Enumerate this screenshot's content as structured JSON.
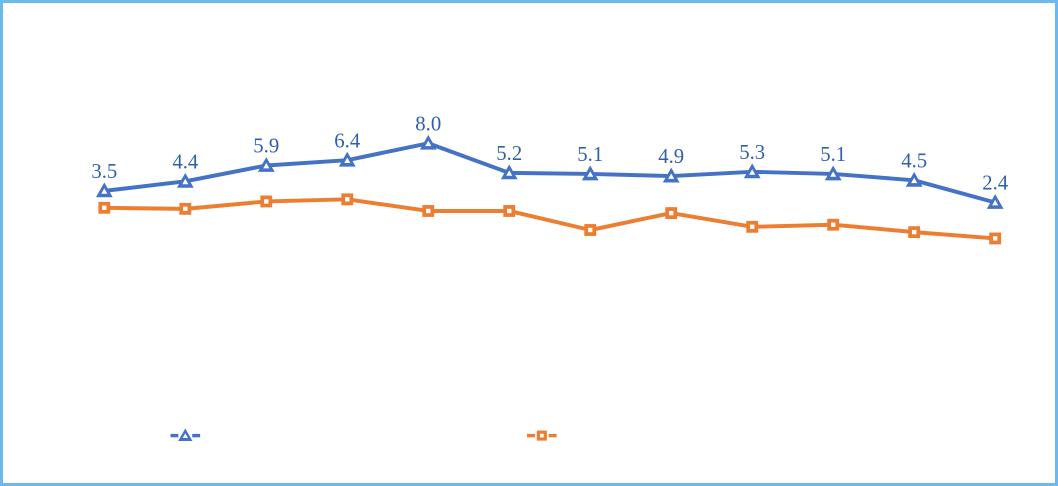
{
  "frame": {
    "border_color": "#6CB8F0",
    "background_color": "#FFFFFF"
  },
  "chart_data": {
    "type": "line",
    "title": "",
    "x": [
      1,
      2,
      3,
      4,
      5,
      6,
      7,
      8,
      9,
      10,
      11,
      12
    ],
    "xlabel": "",
    "ylabel": "",
    "grid": false,
    "axes_visible": false,
    "legend_position": "bottom",
    "data_label_color": "#3060AC",
    "series": [
      {
        "name": "blue-triangle-series",
        "color": "#4472C4",
        "marker": "triangle",
        "marker_inner_color": "#FFFFFF",
        "values": [
          3.5,
          4.4,
          5.9,
          6.4,
          8.0,
          5.2,
          5.1,
          4.9,
          5.3,
          5.1,
          4.5,
          2.4
        ],
        "labels": [
          "3.5",
          "4.4",
          "5.9",
          "6.4",
          "8.0",
          "5.2",
          "5.1",
          "4.9",
          "5.3",
          "5.1",
          "4.5",
          "2.4"
        ],
        "labels_visible": true
      },
      {
        "name": "orange-square-series",
        "color": "#ED7D31",
        "marker": "square",
        "marker_inner_color": "#FFFFFF",
        "values": [
          1.9,
          1.8,
          2.5,
          2.7,
          1.6,
          1.6,
          -0.2,
          1.4,
          0.1,
          0.3,
          -0.4,
          -1.0
        ],
        "labels": [],
        "labels_visible": false
      }
    ]
  }
}
